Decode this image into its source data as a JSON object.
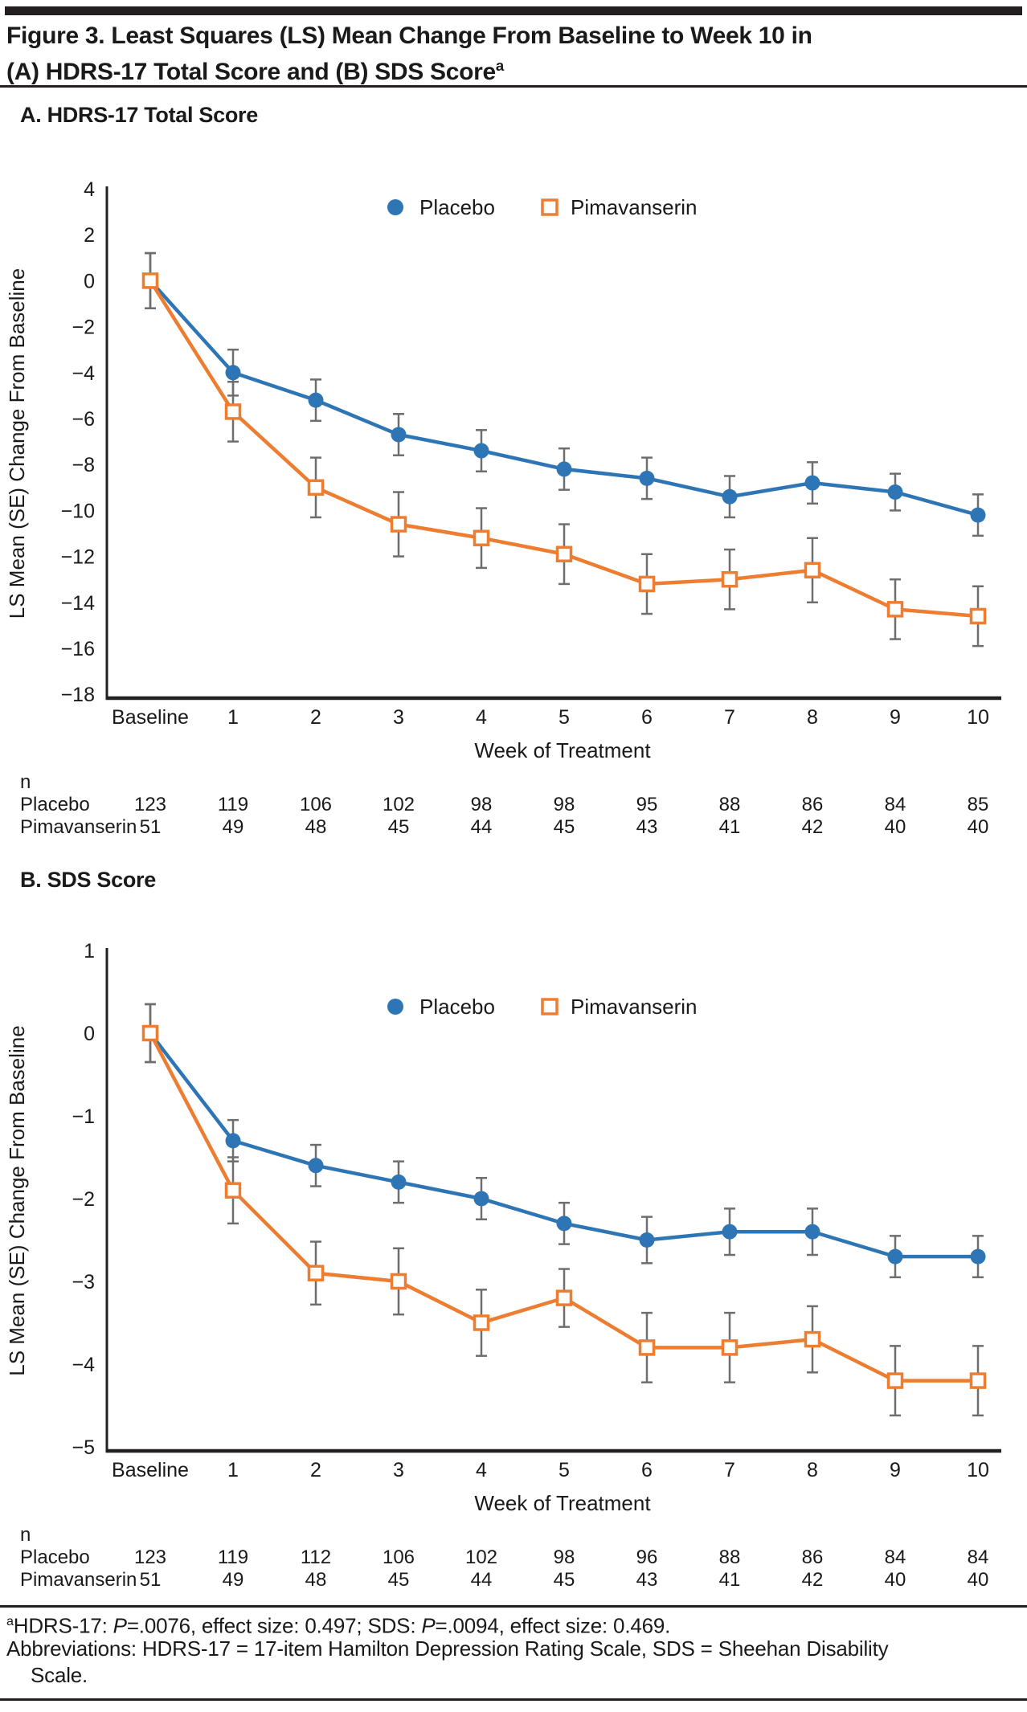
{
  "page": {
    "title_line1": "Figure 3. Least Squares (LS) Mean Change From Baseline to Week 10 in",
    "title_line2": "(A) HDRS-17 Total Score and (B) SDS Score",
    "title_sup": "a"
  },
  "colors": {
    "placebo": "#2E75B6",
    "pimavanserin": "#ED7D31",
    "error_bar": "#6E6E6E",
    "axis": "#231F20",
    "text": "#1A1A1A"
  },
  "footnote": {
    "sup": "a",
    "seg1": "HDRS-17: ",
    "p1": "P",
    "seg2": "=.0076, effect size: 0.497; SDS: ",
    "p2": "P",
    "seg3": "=.0094, effect size: 0.469.",
    "abbrev_line1": "Abbreviations: HDRS-17 = 17-item Hamilton Depression Rating Scale, SDS = Sheehan Disability",
    "abbrev_line2": "Scale."
  },
  "chart_data": [
    {
      "type": "line",
      "panel_label": "A. HDRS-17 Total Score",
      "x_categories": [
        "Baseline",
        "1",
        "2",
        "3",
        "4",
        "5",
        "6",
        "7",
        "8",
        "9",
        "10"
      ],
      "xlabel": "Week of Treatment",
      "ylabel": "LS Mean (SE) Change From Baseline",
      "ylim": [
        -18,
        4
      ],
      "yticks": [
        4,
        2,
        0,
        -2,
        -4,
        -6,
        -8,
        -10,
        -12,
        -14,
        -16,
        -18
      ],
      "grid": false,
      "legend_position": "top-center",
      "n_label": "n",
      "series": [
        {
          "name": "Placebo",
          "marker": "circle",
          "color": "#2E75B6",
          "values": [
            0,
            -4.0,
            -5.2,
            -6.7,
            -7.4,
            -8.2,
            -8.6,
            -9.4,
            -8.8,
            -9.2,
            -10.2
          ],
          "se": [
            1.2,
            1.0,
            0.9,
            0.9,
            0.9,
            0.9,
            0.9,
            0.9,
            0.9,
            0.8,
            0.9
          ],
          "n": [
            123,
            119,
            106,
            102,
            98,
            98,
            95,
            88,
            86,
            84,
            85
          ]
        },
        {
          "name": "Pimavanserin",
          "marker": "open-square",
          "color": "#ED7D31",
          "values": [
            0,
            -5.7,
            -9.0,
            -10.6,
            -11.2,
            -11.9,
            -13.2,
            -13.0,
            -12.6,
            -14.3,
            -14.6
          ],
          "se": [
            1.2,
            1.3,
            1.3,
            1.4,
            1.3,
            1.3,
            1.3,
            1.3,
            1.4,
            1.3,
            1.3
          ],
          "n": [
            51,
            49,
            48,
            45,
            44,
            45,
            43,
            41,
            42,
            40,
            40
          ]
        }
      ]
    },
    {
      "type": "line",
      "panel_label": "B. SDS Score",
      "x_categories": [
        "Baseline",
        "1",
        "2",
        "3",
        "4",
        "5",
        "6",
        "7",
        "8",
        "9",
        "10"
      ],
      "xlabel": "Week of Treatment",
      "ylabel": "LS Mean (SE) Change From Baseline",
      "ylim": [
        -5,
        1
      ],
      "yticks": [
        1,
        0,
        -1,
        -2,
        -3,
        -4,
        -5
      ],
      "grid": false,
      "legend_position": "top-center",
      "n_label": "n",
      "series": [
        {
          "name": "Placebo",
          "marker": "circle",
          "color": "#2E75B6",
          "values": [
            0,
            -1.3,
            -1.6,
            -1.8,
            -2.0,
            -2.3,
            -2.5,
            -2.4,
            -2.4,
            -2.7,
            -2.7
          ],
          "se": [
            0.35,
            0.25,
            0.25,
            0.25,
            0.25,
            0.25,
            0.28,
            0.28,
            0.28,
            0.25,
            0.25
          ],
          "n": [
            123,
            119,
            112,
            106,
            102,
            98,
            96,
            88,
            86,
            84,
            84
          ]
        },
        {
          "name": "Pimavanserin",
          "marker": "open-square",
          "color": "#ED7D31",
          "values": [
            0,
            -1.9,
            -2.9,
            -3.0,
            -3.5,
            -3.2,
            -3.8,
            -3.8,
            -3.7,
            -4.2,
            -4.2
          ],
          "se": [
            0.35,
            0.4,
            0.38,
            0.4,
            0.4,
            0.35,
            0.42,
            0.42,
            0.4,
            0.42,
            0.42
          ],
          "n": [
            51,
            49,
            48,
            45,
            44,
            45,
            43,
            41,
            42,
            40,
            40
          ]
        }
      ]
    }
  ]
}
